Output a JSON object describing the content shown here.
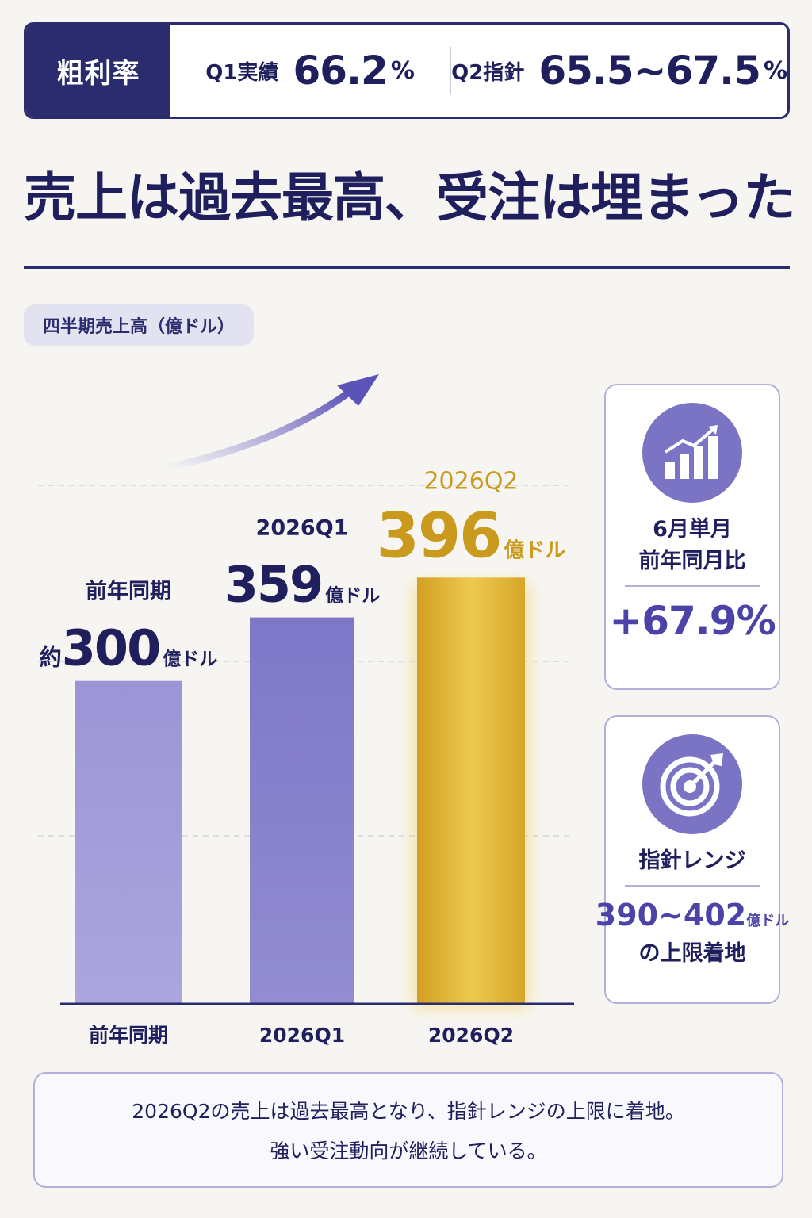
{
  "banner": {
    "label": "粗利率",
    "q1": {
      "label": "Q1実績",
      "value": "66.2",
      "unit": "%"
    },
    "q2": {
      "label": "Q2指針",
      "value": "65.5~67.5",
      "unit": "%"
    }
  },
  "headline": "売上は過去最高、受注は埋まった",
  "colors": {
    "navy": "#1e1f5c",
    "lavender": "#8f89d0",
    "gold": "#d9aa2a",
    "accent": "#4b43a8"
  },
  "chart_data": {
    "type": "bar",
    "title": "四半期売上高（億ドル）",
    "categories": [
      "前年同期",
      "2026Q1",
      "2026Q2"
    ],
    "values": [
      300,
      359,
      396
    ],
    "ylim": [
      0,
      520
    ],
    "grid": true,
    "highlight_index": 2,
    "data_labels": [
      {
        "top": "前年同期",
        "prefix": "約",
        "value": "300",
        "unit": "億ドル"
      },
      {
        "top": "2026Q1",
        "prefix": "",
        "value": "359",
        "unit": "億ドル"
      },
      {
        "top": "2026Q2",
        "prefix": "",
        "value": "396",
        "unit": "億ドル"
      }
    ]
  },
  "cards": [
    {
      "icon": "growth-chart-icon",
      "title_lines": [
        "6月単月",
        "前年同月比"
      ],
      "value": "+67.9%"
    },
    {
      "icon": "target-icon",
      "title": "指針レンジ",
      "range": "390~402",
      "range_unit": "億ドル",
      "footer": "の上限着地"
    }
  ],
  "note": {
    "line1": "2026Q2の売上は過去最高となり、指針レンジの上限に着地。",
    "line2": "強い受注動向が継続している。"
  }
}
